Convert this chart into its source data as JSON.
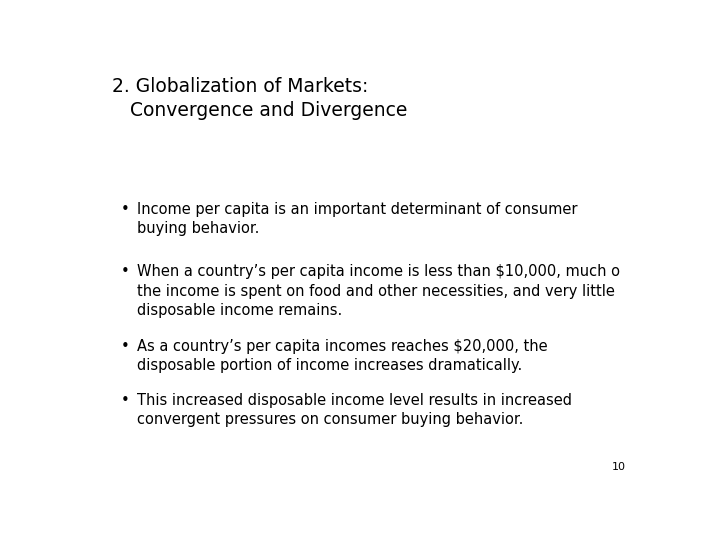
{
  "title_line1": "2. Globalization of Markets:",
  "title_line2": "   Convergence and Divergence",
  "bullets": [
    "Income per capita is an important determinant of consumer\nbuying behavior.",
    "When a country’s per capita income is less than $10,000, much o\nthe income is spent on food and other necessities, and very little\ndisposable income remains.",
    "As a country’s per capita incomes reaches $20,000, the\ndisposable portion of income increases dramatically.",
    "This increased disposable income level results in increased\nconvergent pressures on consumer buying behavior."
  ],
  "page_number": "10",
  "background_color": "#ffffff",
  "text_color": "#000000",
  "title_fontsize": 13.5,
  "bullet_fontsize": 10.5,
  "page_fontsize": 8
}
